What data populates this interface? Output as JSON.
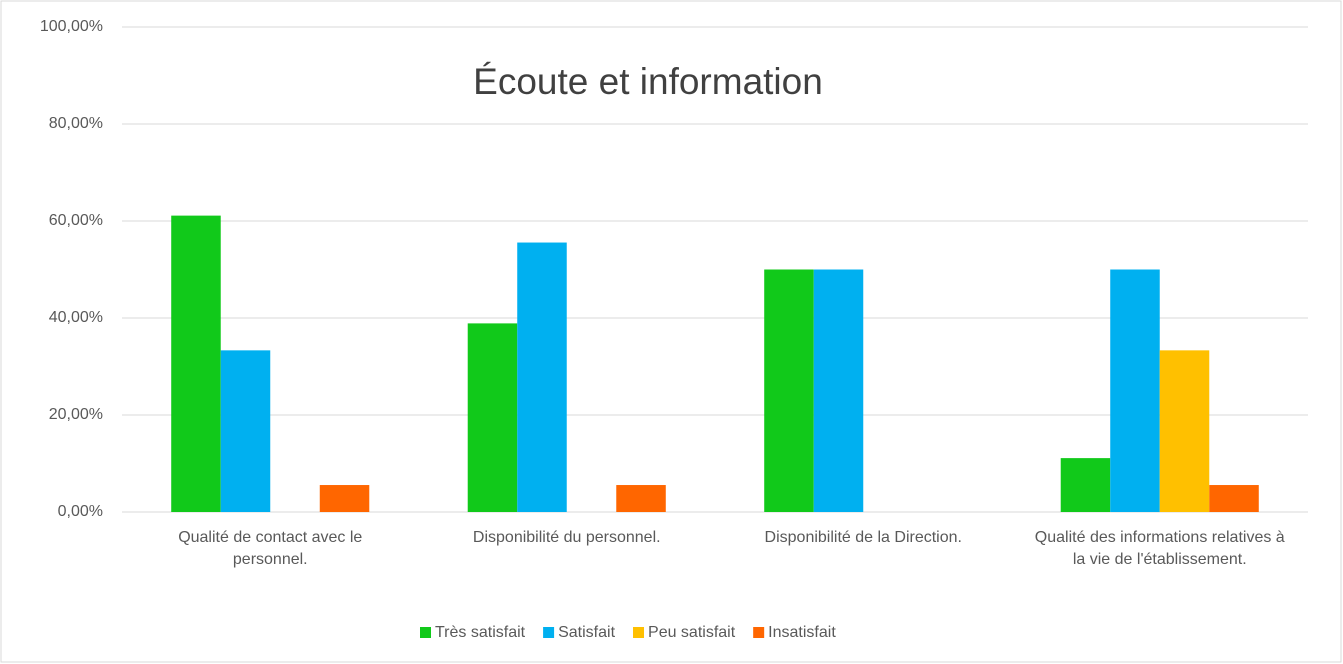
{
  "chart_data": {
    "type": "bar",
    "title": "Écoute et information",
    "categories": [
      "Qualité de contact avec le personnel.",
      "Disponibilité du personnel.",
      "Disponibilité de la Direction.",
      "Qualité des informations relatives à la vie de l'établissement."
    ],
    "series": [
      {
        "name": "Très satisfait",
        "color": "#11c91a",
        "values": [
          61.11,
          38.89,
          50,
          11.11
        ]
      },
      {
        "name": "Satisfait",
        "color": "#00b0f0",
        "values": [
          33.33,
          55.56,
          50,
          50
        ]
      },
      {
        "name": "Peu satisfait",
        "color": "#ffc000",
        "values": [
          null,
          null,
          null,
          33.33
        ]
      },
      {
        "name": "Insatisfait",
        "color": "#ff6600",
        "values": [
          5.56,
          5.56,
          null,
          5.56
        ]
      }
    ],
    "ylim": [
      0,
      100
    ],
    "yticks": [
      {
        "value": 0,
        "label": "0,00%"
      },
      {
        "value": 20,
        "label": "20,00%"
      },
      {
        "value": 40,
        "label": "40,00%"
      },
      {
        "value": 60,
        "label": "60,00%"
      },
      {
        "value": 80,
        "label": "80,00%"
      },
      {
        "value": 100,
        "label": "100,00%"
      }
    ],
    "grid": true,
    "legend": "bottom"
  }
}
